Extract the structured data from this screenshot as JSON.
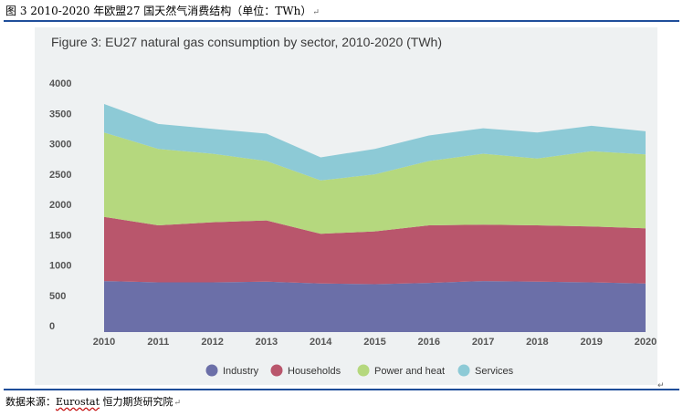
{
  "caption": {
    "text": "图 3 2010-2020 年欧盟27 国天然气消费结构（单位：TWh）",
    "mark": "↵"
  },
  "source": {
    "prefix": "数据来源：",
    "name": "Eurostat",
    "suffix": " 恒力期货研究院",
    "mark": "↵"
  },
  "corner_mark": "↵",
  "colors": {
    "industry": "#6b6fa8",
    "households": "#b9566c",
    "power_and_heat": "#b5d87e",
    "services": "#8dcad6",
    "panel": "#eef1f2",
    "rule": "#1f4e9a"
  },
  "chart_data": {
    "type": "area",
    "stacked": true,
    "title": "Figure 3: EU27 natural gas consumption by sector, 2010-2020 (TWh)",
    "xlabel": "",
    "ylabel": "",
    "x": [
      "2010",
      "2011",
      "2012",
      "2013",
      "2014",
      "2015",
      "2016",
      "2017",
      "2018",
      "2019",
      "2020"
    ],
    "ylim": [
      0,
      4000
    ],
    "yticks": [
      0,
      500,
      1000,
      1500,
      2000,
      2500,
      3000,
      3500,
      4000
    ],
    "grid": false,
    "legend_position": "bottom",
    "series": [
      {
        "name": "Industry",
        "color": "#6b6fa8",
        "values": [
          840,
          820,
          820,
          830,
          800,
          790,
          810,
          840,
          830,
          820,
          800
        ]
      },
      {
        "name": "Households",
        "color": "#b9566c",
        "values": [
          1060,
          940,
          990,
          1010,
          820,
          870,
          950,
          930,
          930,
          920,
          910
        ]
      },
      {
        "name": "Power and heat",
        "color": "#b5d87e",
        "values": [
          1390,
          1260,
          1130,
          980,
          880,
          940,
          1060,
          1170,
          1100,
          1240,
          1220
        ]
      },
      {
        "name": "Services",
        "color": "#8dcad6",
        "values": [
          470,
          410,
          410,
          450,
          380,
          420,
          420,
          420,
          430,
          420,
          380
        ]
      }
    ]
  }
}
